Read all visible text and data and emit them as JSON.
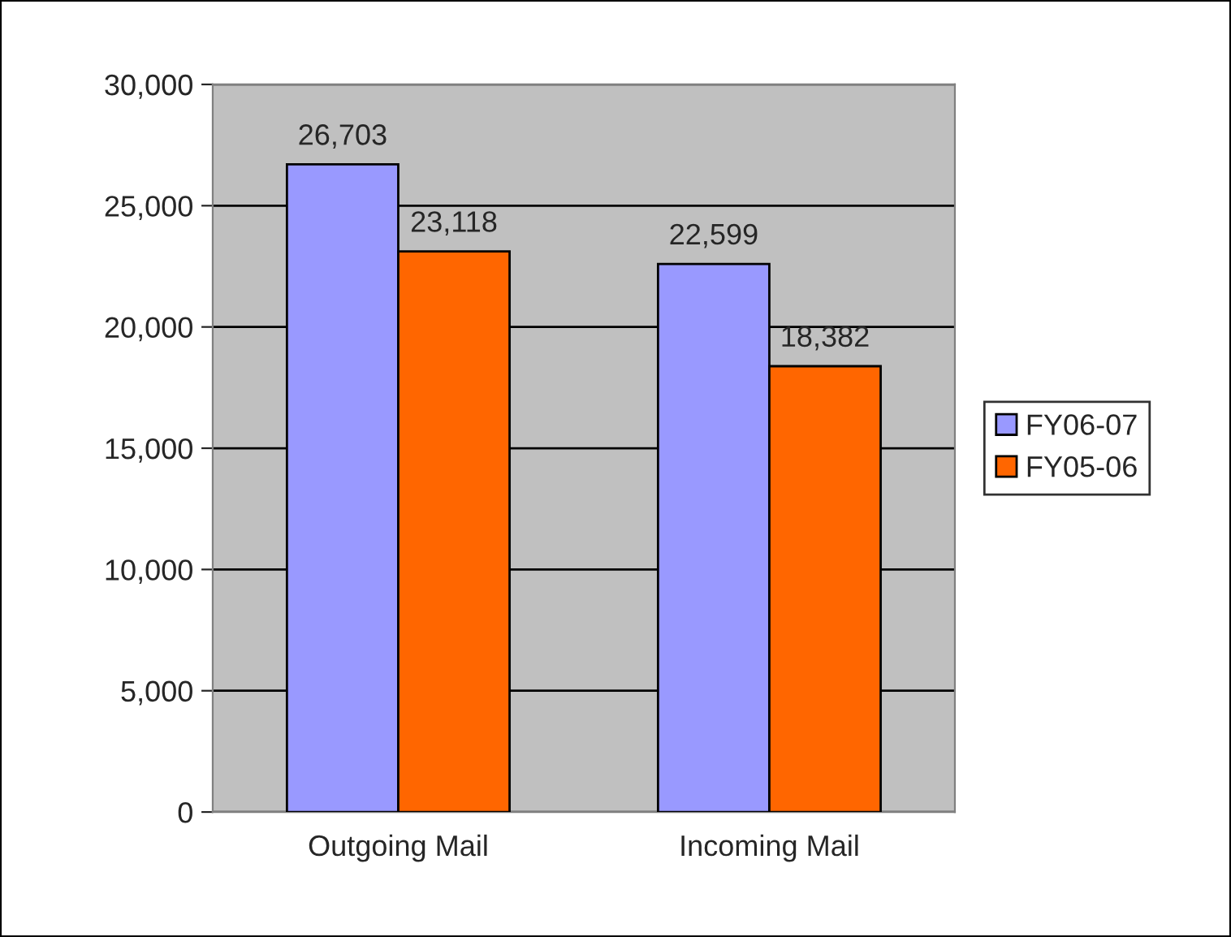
{
  "chart_data": {
    "type": "bar",
    "categories": [
      "Outgoing Mail",
      "Incoming Mail"
    ],
    "series": [
      {
        "name": "FY06-07",
        "color": "#9999ff",
        "values": [
          26703,
          22599
        ],
        "value_labels": [
          "26,703",
          "22,599"
        ]
      },
      {
        "name": "FY05-06",
        "color": "#ff6600",
        "values": [
          23118,
          18382
        ],
        "value_labels": [
          "23,118",
          "18,382"
        ]
      }
    ],
    "ylim": [
      0,
      30000
    ],
    "yticks": [
      {
        "value": 0,
        "label": "0"
      },
      {
        "value": 5000,
        "label": "5,000"
      },
      {
        "value": 10000,
        "label": "10,000"
      },
      {
        "value": 15000,
        "label": "15,000"
      },
      {
        "value": 20000,
        "label": "20,000"
      },
      {
        "value": 25000,
        "label": "25,000"
      },
      {
        "value": 30000,
        "label": "30,000"
      }
    ],
    "grid": "y",
    "legend": "right"
  }
}
